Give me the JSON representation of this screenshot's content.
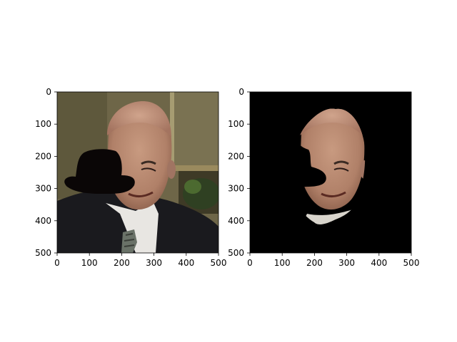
{
  "figure": {
    "background": "#ffffff",
    "panels": [
      {
        "id": "left",
        "content": "photo of elderly man in dark suit and tie with a black bowler-hat shaped occlusion over the left side of his face",
        "x_ticks": [
          "0",
          "100",
          "200",
          "300",
          "400",
          "500"
        ],
        "y_ticks": [
          "0",
          "100",
          "200",
          "300",
          "400",
          "500"
        ]
      },
      {
        "id": "right",
        "content": "segmented face region of the same man on a black background, with the hat-shaped occlusion removed from the face mask",
        "x_ticks": [
          "0",
          "100",
          "200",
          "300",
          "400",
          "500"
        ],
        "y_ticks": [
          "0",
          "100",
          "200",
          "300",
          "400",
          "500"
        ]
      }
    ],
    "colors": {
      "background_wall": "#6e6648",
      "door_frame": "#8c8460",
      "suit": "#1a1a1e",
      "shirt": "#e8e6e2",
      "tie": "#6a7268",
      "skin": "#b88c72",
      "hat": "#0a0606",
      "mask_background": "#000000"
    }
  }
}
